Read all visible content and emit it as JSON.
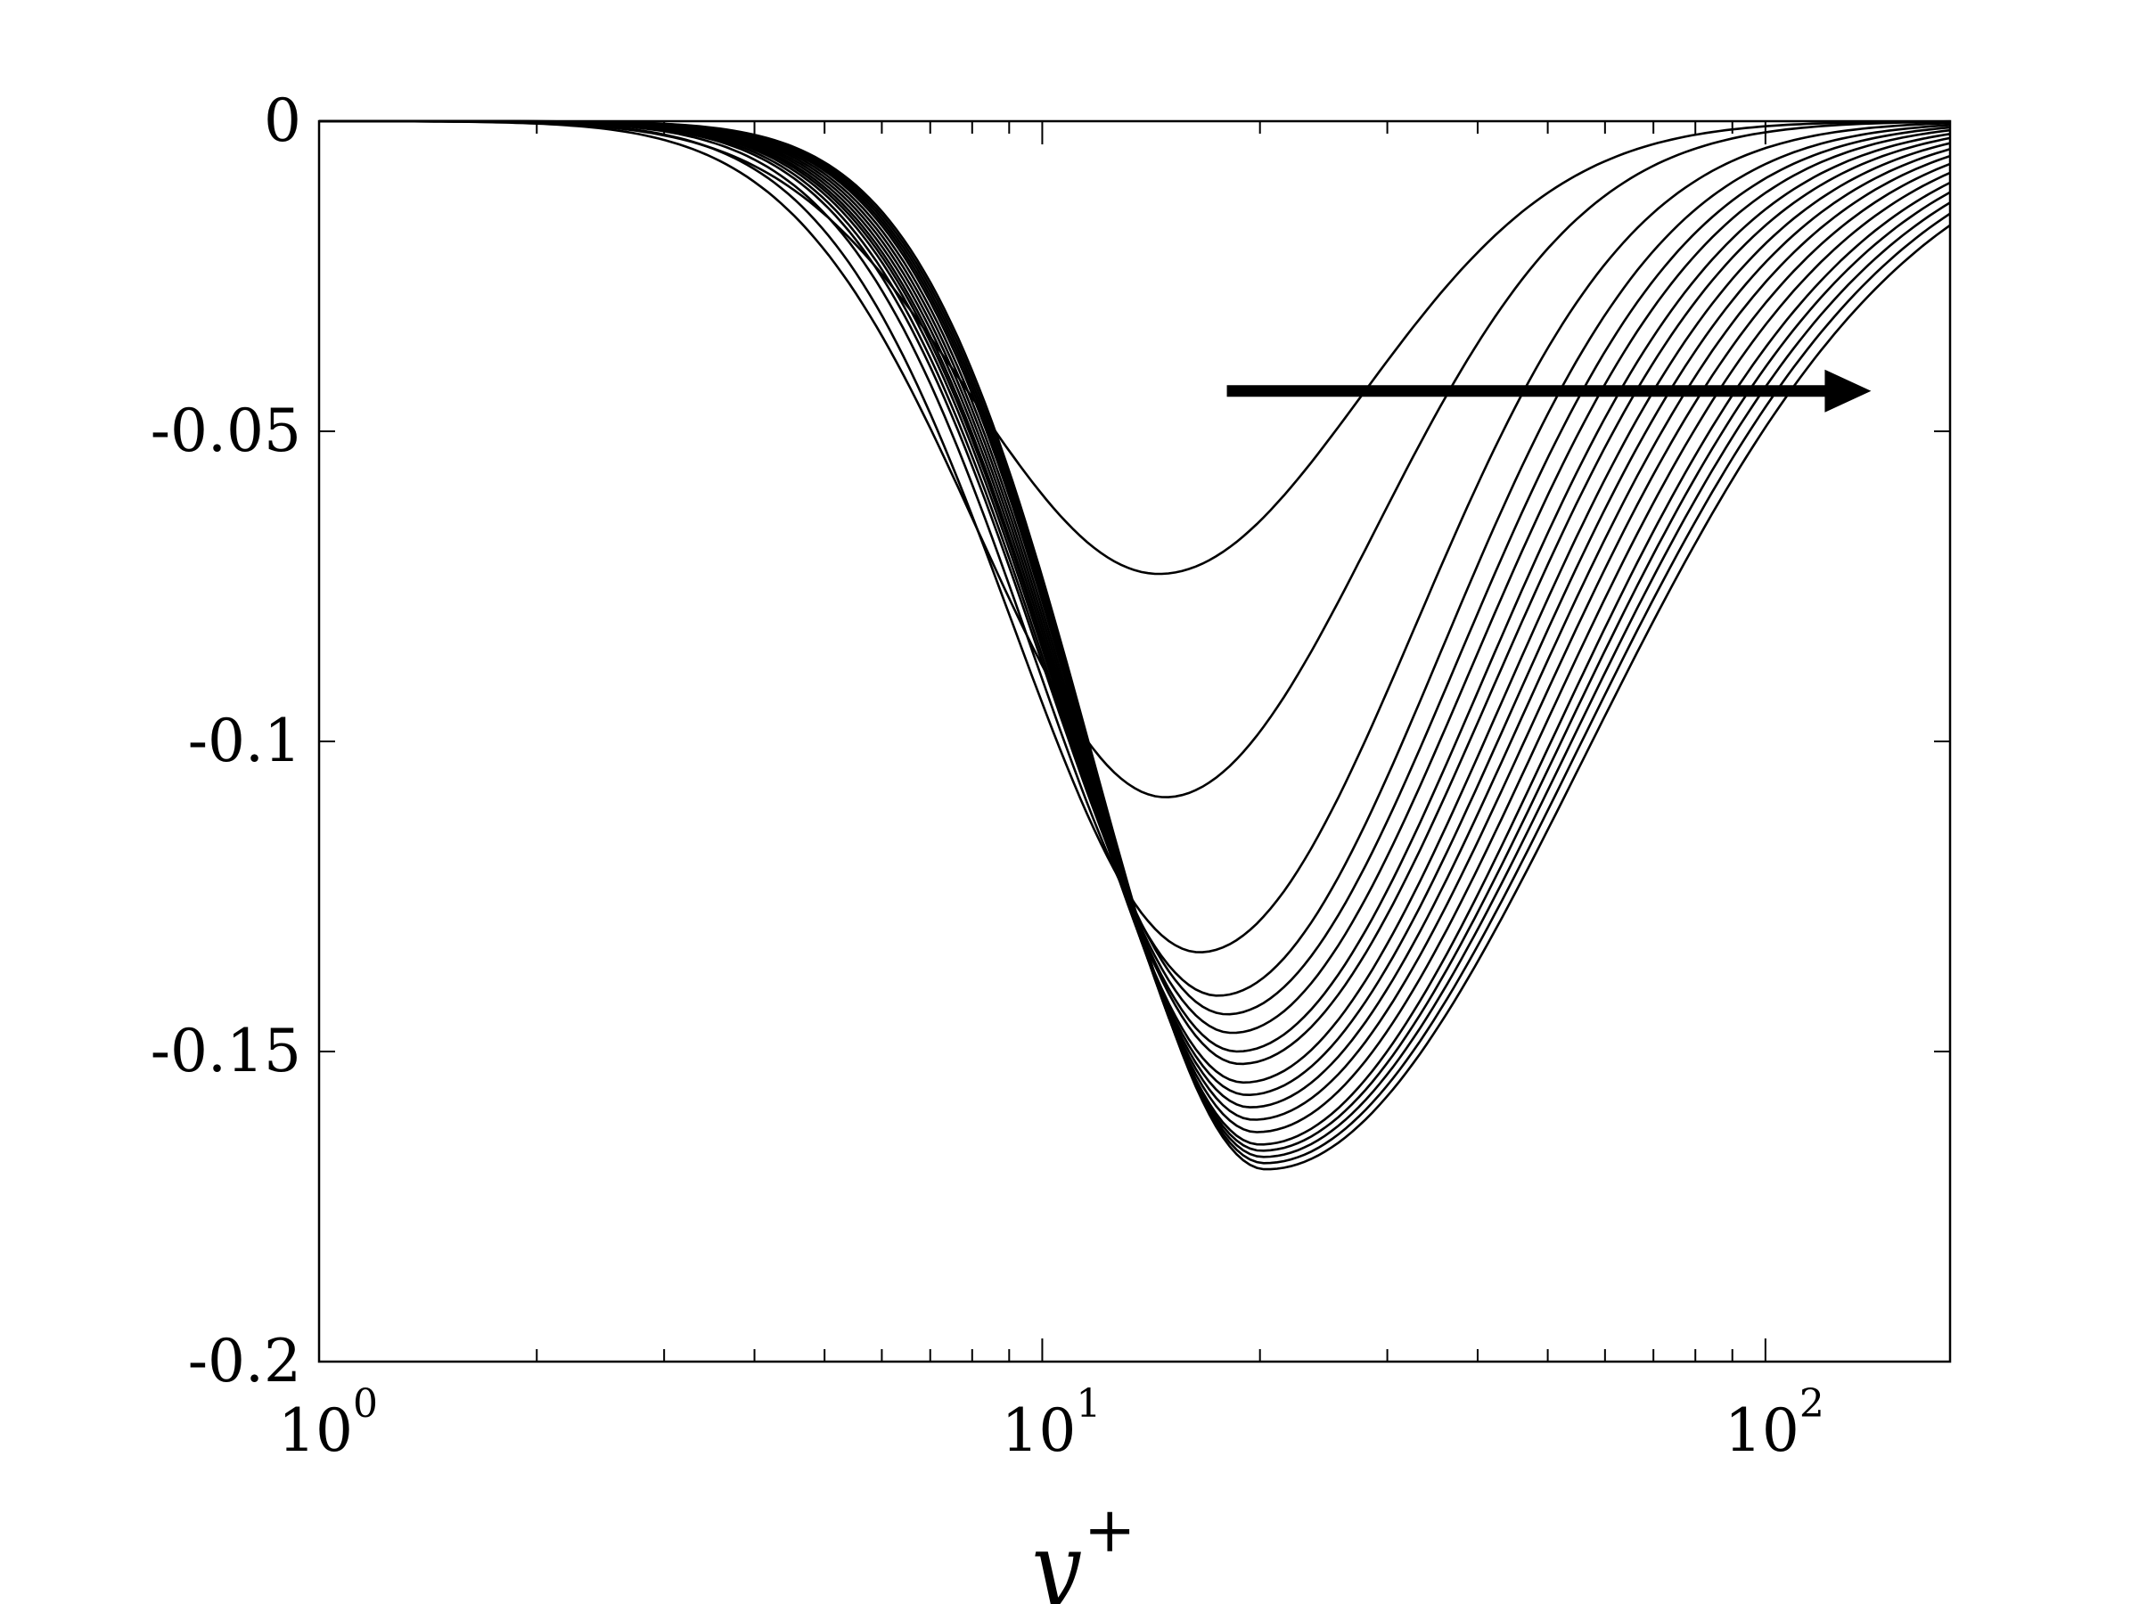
{
  "chart_data": {
    "type": "line",
    "x_scale": "log",
    "xlabel": "y",
    "xlabel_superscript": "+",
    "ylabel": "",
    "title": "",
    "xlim": [
      1,
      180
    ],
    "ylim": [
      -0.2,
      0
    ],
    "x_ticks": [
      {
        "base": "10",
        "exp": "0",
        "value": 1
      },
      {
        "base": "10",
        "exp": "1",
        "value": 10
      },
      {
        "base": "10",
        "exp": "2",
        "value": 100
      }
    ],
    "y_ticks": [
      {
        "label": "0",
        "value": 0
      },
      {
        "label": "-0.05",
        "value": -0.05
      },
      {
        "label": "-0.1",
        "value": -0.1
      },
      {
        "label": "-0.15",
        "value": -0.15
      },
      {
        "label": "-0.2",
        "value": -0.2
      }
    ],
    "grid": false,
    "legend": "none",
    "annotation": {
      "type": "arrow",
      "direction": "right",
      "from": [
        18,
        -0.0435
      ],
      "to": [
        140,
        -0.0435
      ]
    },
    "line_color": "#000000",
    "series": [
      {
        "min_x": 14.5,
        "min_y": -0.073
      },
      {
        "min_x": 14.8,
        "min_y": -0.109
      },
      {
        "min_x": 16.5,
        "min_y": -0.134
      },
      {
        "min_x": 17.5,
        "min_y": -0.141
      },
      {
        "min_x": 18.0,
        "min_y": -0.144
      },
      {
        "min_x": 18.3,
        "min_y": -0.147
      },
      {
        "min_x": 18.6,
        "min_y": -0.15
      },
      {
        "min_x": 18.8,
        "min_y": -0.152
      },
      {
        "min_x": 19.0,
        "min_y": -0.155
      },
      {
        "min_x": 19.2,
        "min_y": -0.157
      },
      {
        "min_x": 19.4,
        "min_y": -0.159
      },
      {
        "min_x": 19.6,
        "min_y": -0.161
      },
      {
        "min_x": 19.8,
        "min_y": -0.163
      },
      {
        "min_x": 20.0,
        "min_y": -0.165
      },
      {
        "min_x": 20.1,
        "min_y": -0.166
      },
      {
        "min_x": 20.2,
        "min_y": -0.167
      },
      {
        "min_x": 20.3,
        "min_y": -0.168
      },
      {
        "min_x": 20.4,
        "min_y": -0.169
      }
    ]
  }
}
